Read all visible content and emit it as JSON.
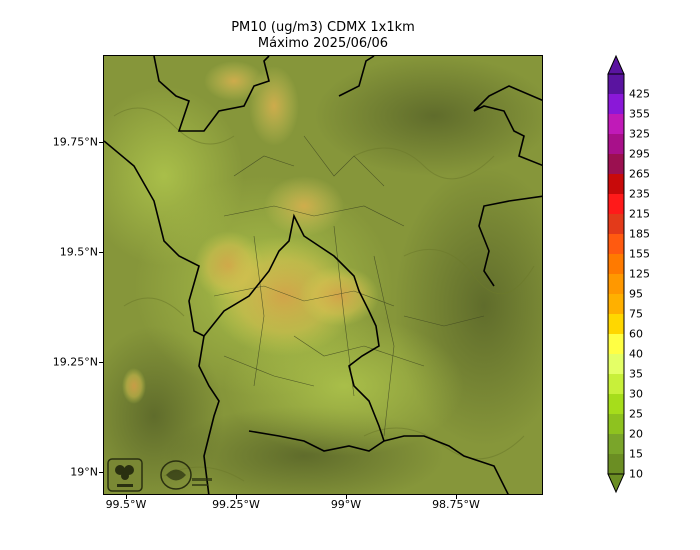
{
  "title": {
    "line1": "PM10 (ug/m3) CDMX 1x1km",
    "line2": "Máximo 2025/06/06"
  },
  "map": {
    "y_axis_labels": [
      "19.75°N",
      "19.5°N",
      "19.25°N",
      "19°N"
    ],
    "x_axis_labels": [
      "99.5°W",
      "99.25°W",
      "99°W",
      "98.75°W"
    ],
    "base_color": "#8a9a3a",
    "hotspot_color": "#d8a040"
  },
  "colorbar": {
    "levels": [
      "10",
      "15",
      "20",
      "25",
      "30",
      "35",
      "40",
      "60",
      "75",
      "95",
      "125",
      "155",
      "185",
      "215",
      "235",
      "265",
      "295",
      "325",
      "355",
      "425"
    ],
    "colors": [
      "#6b8e23",
      "#7aa52a",
      "#8ec21f",
      "#a6dd1b",
      "#c8f03a",
      "#e4ff66",
      "#ffff44",
      "#ffd700",
      "#ffb000",
      "#ff9800",
      "#ff7a00",
      "#ff5a10",
      "#e33a1a",
      "#ff1a1a",
      "#c80a0a",
      "#9b1050",
      "#a8108a",
      "#c01ab8",
      "#8a18d8",
      "#5a14a0"
    ]
  },
  "logos": {
    "left": "SEDEMA-icon",
    "right": "aire-logo-icon"
  }
}
